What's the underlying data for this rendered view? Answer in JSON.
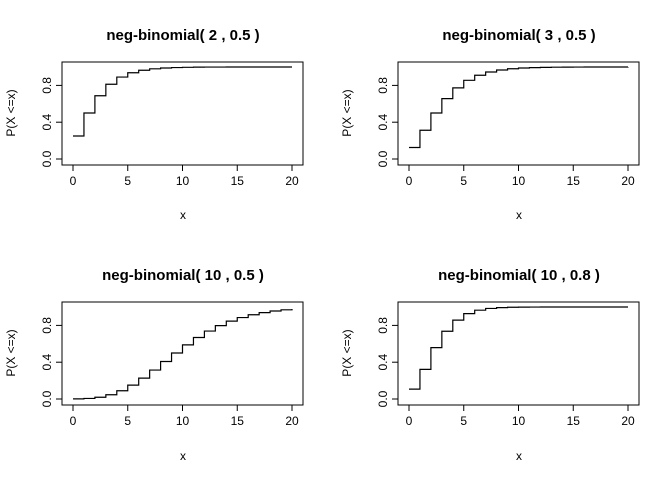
{
  "chart_data": [
    {
      "type": "step",
      "title": "neg-binomial( 2 , 0.5 )",
      "xlabel": "x",
      "ylabel": "P(X <=x)",
      "xlim": [
        0,
        20
      ],
      "ylim": [
        0,
        1
      ],
      "x_ticks": [
        "0",
        "5",
        "10",
        "15",
        "20"
      ],
      "y_ticks": [
        "0.0",
        "0.4",
        "0.8"
      ],
      "x": [
        0,
        1,
        2,
        3,
        4,
        5,
        6,
        7,
        8,
        9,
        10,
        11,
        12,
        13,
        14,
        15,
        16,
        17,
        18,
        19,
        20
      ],
      "values": [
        0.25,
        0.5,
        0.6875,
        0.8125,
        0.8906,
        0.9375,
        0.9648,
        0.9805,
        0.9893,
        0.9941,
        0.9968,
        0.9983,
        0.9991,
        0.9995,
        0.9997,
        0.9999,
        0.9999,
        1.0,
        1.0,
        1.0,
        1.0
      ]
    },
    {
      "type": "step",
      "title": "neg-binomial( 3 , 0.5 )",
      "xlabel": "x",
      "ylabel": "P(X <=x)",
      "xlim": [
        0,
        20
      ],
      "ylim": [
        0,
        1
      ],
      "x_ticks": [
        "0",
        "5",
        "10",
        "15",
        "20"
      ],
      "y_ticks": [
        "0.0",
        "0.4",
        "0.8"
      ],
      "x": [
        0,
        1,
        2,
        3,
        4,
        5,
        6,
        7,
        8,
        9,
        10,
        11,
        12,
        13,
        14,
        15,
        16,
        17,
        18,
        19,
        20
      ],
      "values": [
        0.125,
        0.3125,
        0.5,
        0.6563,
        0.7734,
        0.8555,
        0.9102,
        0.9453,
        0.9673,
        0.9807,
        0.9888,
        0.9935,
        0.9963,
        0.9979,
        0.9988,
        0.9993,
        0.9996,
        0.9998,
        0.9999,
        0.9999,
        1.0
      ]
    },
    {
      "type": "step",
      "title": "neg-binomial( 10 , 0.5 )",
      "xlabel": "x",
      "ylabel": "P(X <=x)",
      "xlim": [
        0,
        20
      ],
      "ylim": [
        0,
        1
      ],
      "x_ticks": [
        "0",
        "5",
        "10",
        "15",
        "20"
      ],
      "y_ticks": [
        "0.0",
        "0.4",
        "0.8"
      ],
      "x": [
        0,
        1,
        2,
        3,
        4,
        5,
        6,
        7,
        8,
        9,
        10,
        11,
        12,
        13,
        14,
        15,
        16,
        17,
        18,
        19,
        20
      ],
      "values": [
        0.001,
        0.0059,
        0.0193,
        0.0461,
        0.0898,
        0.1509,
        0.2272,
        0.3145,
        0.4073,
        0.5,
        0.5881,
        0.6682,
        0.7383,
        0.7976,
        0.8462,
        0.8852,
        0.9156,
        0.9389,
        0.9565,
        0.9695,
        0.9789
      ]
    },
    {
      "type": "step",
      "title": "neg-binomial( 10 , 0.8 )",
      "xlabel": "x",
      "ylabel": "P(X <=x)",
      "xlim": [
        0,
        20
      ],
      "ylim": [
        0,
        1
      ],
      "x_ticks": [
        "0",
        "5",
        "10",
        "15",
        "20"
      ],
      "y_ticks": [
        "0.0",
        "0.4",
        "0.8"
      ],
      "x": [
        0,
        1,
        2,
        3,
        4,
        5,
        6,
        7,
        8,
        9,
        10,
        11,
        12,
        13,
        14,
        15,
        16,
        17,
        18,
        19,
        20
      ],
      "values": [
        0.1074,
        0.3221,
        0.5583,
        0.7361,
        0.8577,
        0.9282,
        0.9656,
        0.9843,
        0.9931,
        0.9971,
        0.9988,
        0.9995,
        0.9998,
        0.9999,
        1.0,
        1.0,
        1.0,
        1.0,
        1.0,
        1.0,
        1.0
      ]
    }
  ]
}
